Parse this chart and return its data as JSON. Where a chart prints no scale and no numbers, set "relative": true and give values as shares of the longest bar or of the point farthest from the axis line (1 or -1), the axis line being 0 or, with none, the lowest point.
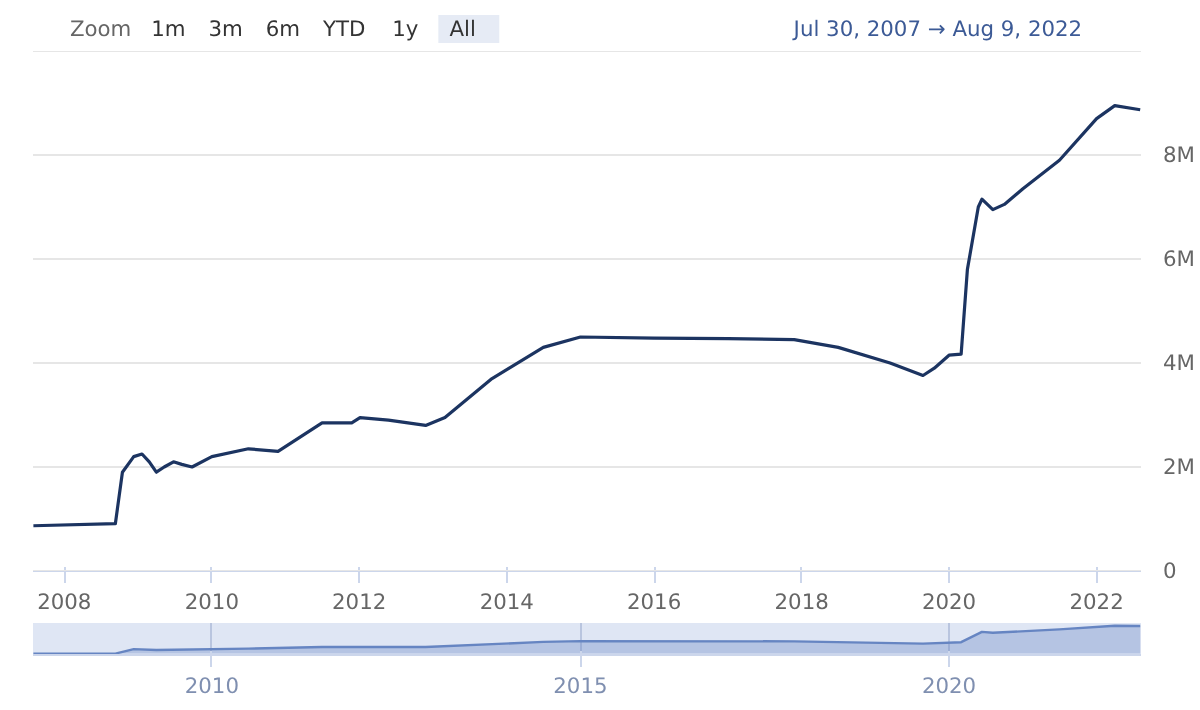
{
  "chart_data": [
    {
      "type": "line",
      "annotations": [
        "Zoom",
        "1m",
        "3m",
        "6m",
        "YTD",
        "1y",
        "All",
        "Jul 30, 2007 → Aug 9, 2022"
      ],
      "x": [
        "2007-08-01",
        "2008-09-10",
        "2008-10-15",
        "2008-12-10",
        "2009-01-20",
        "2009-02-25",
        "2009-04-01",
        "2009-05-10",
        "2009-06-25",
        "2009-08-05",
        "2009-09-25",
        "2010-01-01",
        "2010-07-01",
        "2010-11-25",
        "2011-07-01",
        "2011-11-25",
        "2012-01-05",
        "2012-05-25",
        "2012-11-25",
        "2013-03-01",
        "2013-10-20",
        "2014-07-01",
        "2015-01-01",
        "2016-01-01",
        "2017-01-01",
        "2017-11-25",
        "2018-07-01",
        "2019-03-15",
        "2019-08-25",
        "2019-10-20",
        "2020-01-01",
        "2020-03-01",
        "2020-04-01",
        "2020-05-25",
        "2020-06-12",
        "2020-08-05",
        "2020-10-01",
        "2021-01-01",
        "2021-07-01",
        "2022-01-01",
        "2022-04-01",
        "2022-08-05"
      ],
      "series": [
        {
          "color": "#1c3461",
          "values": [
            0.87,
            0.91,
            1.9,
            2.2,
            2.25,
            2.1,
            1.9,
            2.0,
            2.1,
            2.05,
            2.0,
            2.2,
            2.35,
            2.3,
            2.85,
            2.85,
            2.95,
            2.9,
            2.8,
            2.95,
            3.7,
            4.3,
            4.5,
            4.48,
            4.47,
            4.45,
            4.3,
            4.0,
            3.76,
            3.9,
            4.15,
            4.17,
            5.8,
            7.0,
            7.15,
            6.95,
            7.05,
            7.35,
            7.9,
            8.7,
            8.95,
            8.87
          ]
        }
      ],
      "xlim": [
        "2007-07-30",
        "2022-08-09"
      ],
      "xticks": [
        {
          "value": "2008-01-01",
          "label": "2008"
        },
        {
          "value": "2010-01-01",
          "label": "2010"
        },
        {
          "value": "2012-01-01",
          "label": "2012"
        },
        {
          "value": "2014-01-01",
          "label": "2014"
        },
        {
          "value": "2016-01-01",
          "label": "2016"
        },
        {
          "value": "2018-01-01",
          "label": "2018"
        },
        {
          "value": "2020-01-01",
          "label": "2020"
        },
        {
          "value": "2022-01-01",
          "label": "2022"
        }
      ],
      "ylim": [
        0,
        10
      ],
      "yticks": [
        0,
        {
          "value": 2,
          "label": "2M"
        },
        {
          "value": 4,
          "label": "4M"
        },
        {
          "value": 6,
          "label": "6M"
        },
        {
          "value": 8,
          "label": "8M"
        },
        {
          "value": 10,
          "label": null
        }
      ],
      "grid": "y",
      "marker": "none",
      "line_style": "solid"
    },
    {
      "type": "area",
      "relative": true,
      "x": [
        "2007-08-01",
        "2008-09-10",
        "2008-12-10",
        "2009-04-01",
        "2010-07-01",
        "2011-07-01",
        "2012-11-25",
        "2014-07-01",
        "2015-01-01",
        "2017-11-25",
        "2019-08-25",
        "2020-03-01",
        "2020-06-12",
        "2020-08-05",
        "2021-07-01",
        "2022-04-01",
        "2022-08-05"
      ],
      "series": [
        {
          "color": "#6685c2",
          "values": [
            0.0,
            0.0,
            0.16,
            0.13,
            0.18,
            0.24,
            0.24,
            0.42,
            0.45,
            0.44,
            0.36,
            0.41,
            0.78,
            0.75,
            0.87,
            1.0,
            0.99
          ]
        }
      ],
      "xlim": [
        "2007-07-30",
        "2022-08-09"
      ],
      "xticks": [
        {
          "value": "2010-01-01",
          "label": "2010"
        },
        {
          "value": "2015-01-01",
          "label": "2015"
        },
        {
          "value": "2020-01-01",
          "label": "2020"
        }
      ],
      "grid": "x"
    }
  ]
}
